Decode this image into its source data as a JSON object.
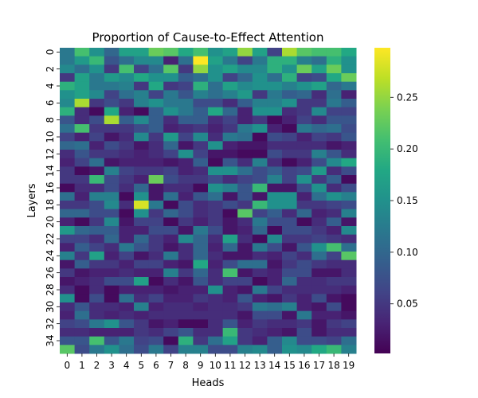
{
  "chart_data": {
    "type": "heatmap",
    "title": "Proportion of Cause-to-Effect Attention",
    "xlabel": "Heads",
    "ylabel": "Layers",
    "x_ticks": [
      "0",
      "1",
      "2",
      "3",
      "4",
      "5",
      "6",
      "7",
      "8",
      "9",
      "10",
      "11",
      "12",
      "13",
      "14",
      "15",
      "16",
      "17",
      "18",
      "19"
    ],
    "y_ticks": [
      "0",
      "2",
      "4",
      "6",
      "8",
      "10",
      "12",
      "14",
      "16",
      "18",
      "20",
      "22",
      "24",
      "26",
      "28",
      "30",
      "32",
      "34"
    ],
    "colormap": "viridis",
    "color_range": [
      0.002,
      0.298
    ],
    "colorbar_ticks": [
      "0.05",
      "0.10",
      "0.15",
      "0.20",
      "0.25"
    ],
    "colorbar_tick_values": [
      0.05,
      0.1,
      0.15,
      0.2,
      0.25
    ],
    "rows": 36,
    "cols": 20,
    "values": [
      [
        0.12,
        0.21,
        0.15,
        0.1,
        0.17,
        0.17,
        0.23,
        0.22,
        0.18,
        0.21,
        0.15,
        0.17,
        0.25,
        0.17,
        0.06,
        0.26,
        0.22,
        0.21,
        0.21,
        0.18
      ],
      [
        0.12,
        0.16,
        0.2,
        0.08,
        0.11,
        0.14,
        0.14,
        0.03,
        0.11,
        0.3,
        0.17,
        0.12,
        0.06,
        0.12,
        0.19,
        0.19,
        0.13,
        0.11,
        0.19,
        0.15
      ],
      [
        0.14,
        0.11,
        0.15,
        0.05,
        0.21,
        0.06,
        0.11,
        0.22,
        0.05,
        0.25,
        0.15,
        0.17,
        0.14,
        0.14,
        0.19,
        0.15,
        0.23,
        0.17,
        0.23,
        0.15
      ],
      [
        0.05,
        0.17,
        0.12,
        0.16,
        0.14,
        0.18,
        0.15,
        0.15,
        0.09,
        0.11,
        0.15,
        0.06,
        0.1,
        0.15,
        0.11,
        0.19,
        0.06,
        0.07,
        0.18,
        0.23
      ],
      [
        0.19,
        0.17,
        0.12,
        0.12,
        0.13,
        0.05,
        0.18,
        0.05,
        0.06,
        0.19,
        0.11,
        0.17,
        0.14,
        0.15,
        0.15,
        0.13,
        0.15,
        0.17,
        0.1,
        0.12
      ],
      [
        0.15,
        0.17,
        0.14,
        0.06,
        0.11,
        0.13,
        0.06,
        0.12,
        0.08,
        0.13,
        0.11,
        0.13,
        0.16,
        0.05,
        0.12,
        0.09,
        0.1,
        0.04,
        0.11,
        0.03
      ],
      [
        0.14,
        0.26,
        0.05,
        0.07,
        0.05,
        0.13,
        0.15,
        0.12,
        0.12,
        0.07,
        0.07,
        0.04,
        0.09,
        0.13,
        0.13,
        0.15,
        0.05,
        0.05,
        0.12,
        0.09
      ],
      [
        0.19,
        0.04,
        0.01,
        0.18,
        0.03,
        0.01,
        0.09,
        0.15,
        0.12,
        0.09,
        0.18,
        0.1,
        0.03,
        0.15,
        0.15,
        0.04,
        0.05,
        0.14,
        0.06,
        0.06
      ],
      [
        0.08,
        0.04,
        0.07,
        0.26,
        0.09,
        0.14,
        0.09,
        0.04,
        0.09,
        0.09,
        0.04,
        0.06,
        0.03,
        0.05,
        0.01,
        0.03,
        0.06,
        0.04,
        0.08,
        0.08
      ],
      [
        0.11,
        0.21,
        0.05,
        0.05,
        0.05,
        0.07,
        0.09,
        0.03,
        0.04,
        0.05,
        0.03,
        0.05,
        0.12,
        0.15,
        0.03,
        0.01,
        0.12,
        0.1,
        0.11,
        0.07
      ],
      [
        0.06,
        0.03,
        0.06,
        0.02,
        0.04,
        0.14,
        0.05,
        0.16,
        0.06,
        0.14,
        0.04,
        0.12,
        0.11,
        0.01,
        0.07,
        0.06,
        0.03,
        0.06,
        0.05,
        0.08
      ],
      [
        0.1,
        0.11,
        0.03,
        0.07,
        0.05,
        0.02,
        0.04,
        0.1,
        0.02,
        0.05,
        0.15,
        0.03,
        0.02,
        0.02,
        0.04,
        0.04,
        0.04,
        0.04,
        0.02,
        0.03
      ],
      [
        0.04,
        0.08,
        0.05,
        0.05,
        0.04,
        0.03,
        0.04,
        0.06,
        0.15,
        0.06,
        0.02,
        0.02,
        0.01,
        0.01,
        0.07,
        0.05,
        0.05,
        0.13,
        0.08,
        0.04
      ],
      [
        0.03,
        0.06,
        0.11,
        0.02,
        0.03,
        0.03,
        0.03,
        0.02,
        0.03,
        0.09,
        0.01,
        0.08,
        0.04,
        0.13,
        0.04,
        0.01,
        0.03,
        0.07,
        0.14,
        0.18
      ],
      [
        0.05,
        0.01,
        0.02,
        0.13,
        0.06,
        0.05,
        0.05,
        0.06,
        0.03,
        0.04,
        0.15,
        0.15,
        0.11,
        0.07,
        0.09,
        0.06,
        0.07,
        0.16,
        0.04,
        0.07
      ],
      [
        0.05,
        0.05,
        0.2,
        0.07,
        0.05,
        0.03,
        0.23,
        0.07,
        0.05,
        0.05,
        0.07,
        0.04,
        0.06,
        0.07,
        0.13,
        0.06,
        0.15,
        0.05,
        0.09,
        0.01
      ],
      [
        0.01,
        0.04,
        0.04,
        0.07,
        0.04,
        0.1,
        0.02,
        0.04,
        0.04,
        0.01,
        0.15,
        0.13,
        0.08,
        0.2,
        0.02,
        0.02,
        0.07,
        0.15,
        0.04,
        0.07
      ],
      [
        0.11,
        0.03,
        0.13,
        0.13,
        0.01,
        0.15,
        0.02,
        0.11,
        0.03,
        0.08,
        0.11,
        0.02,
        0.08,
        0.02,
        0.15,
        0.15,
        0.03,
        0.11,
        0.15,
        0.13
      ],
      [
        0.05,
        0.05,
        0.07,
        0.14,
        0.04,
        0.28,
        0.12,
        0.01,
        0.07,
        0.04,
        0.05,
        0.07,
        0.05,
        0.2,
        0.15,
        0.15,
        0.05,
        0.05,
        0.06,
        0.07
      ],
      [
        0.1,
        0.1,
        0.07,
        0.07,
        0.01,
        0.15,
        0.05,
        0.1,
        0.07,
        0.04,
        0.05,
        0.01,
        0.22,
        0.06,
        0.09,
        0.04,
        0.1,
        0.03,
        0.04,
        0.13
      ],
      [
        0.03,
        0.01,
        0.05,
        0.14,
        0.02,
        0.06,
        0.06,
        0.01,
        0.05,
        0.03,
        0.05,
        0.02,
        0.04,
        0.12,
        0.07,
        0.07,
        0.01,
        0.04,
        0.09,
        0.02
      ],
      [
        0.16,
        0.1,
        0.09,
        0.09,
        0.03,
        0.03,
        0.07,
        0.07,
        0.02,
        0.12,
        0.07,
        0.02,
        0.03,
        0.1,
        0.01,
        0.07,
        0.07,
        0.05,
        0.03,
        0.14
      ],
      [
        0.06,
        0.06,
        0.04,
        0.1,
        0.03,
        0.1,
        0.05,
        0.03,
        0.14,
        0.1,
        0.04,
        0.17,
        0.04,
        0.01,
        0.14,
        0.05,
        0.05,
        0.06,
        0.05,
        0.04
      ],
      [
        0.03,
        0.09,
        0.06,
        0.04,
        0.12,
        0.08,
        0.05,
        0.02,
        0.04,
        0.1,
        0.03,
        0.1,
        0.02,
        0.12,
        0.07,
        0.02,
        0.08,
        0.15,
        0.21,
        0.11
      ],
      [
        0.13,
        0.05,
        0.17,
        0.03,
        0.06,
        0.02,
        0.04,
        0.12,
        0.04,
        0.1,
        0.04,
        0.02,
        0.02,
        0.04,
        0.03,
        0.06,
        0.04,
        0.11,
        0.06,
        0.22
      ],
      [
        0.02,
        0.09,
        0.05,
        0.05,
        0.03,
        0.06,
        0.06,
        0.03,
        0.02,
        0.18,
        0.03,
        0.07,
        0.11,
        0.11,
        0.02,
        0.05,
        0.07,
        0.05,
        0.04,
        0.04
      ],
      [
        0.05,
        0.02,
        0.03,
        0.03,
        0.04,
        0.03,
        0.03,
        0.13,
        0.05,
        0.1,
        0.04,
        0.21,
        0.02,
        0.04,
        0.03,
        0.07,
        0.07,
        0.02,
        0.02,
        0.04
      ],
      [
        0.02,
        0.03,
        0.04,
        0.07,
        0.07,
        0.17,
        0.01,
        0.04,
        0.02,
        0.08,
        0.04,
        0.06,
        0.06,
        0.01,
        0.03,
        0.1,
        0.04,
        0.04,
        0.05,
        0.05
      ],
      [
        0.04,
        0.01,
        0.04,
        0.01,
        0.03,
        0.03,
        0.03,
        0.02,
        0.03,
        0.03,
        0.15,
        0.03,
        0.02,
        0.12,
        0.06,
        0.04,
        0.04,
        0.04,
        0.04,
        0.03
      ],
      [
        0.15,
        0.01,
        0.07,
        0.01,
        0.11,
        0.04,
        0.06,
        0.03,
        0.03,
        0.05,
        0.04,
        0.03,
        0.08,
        0.03,
        0.02,
        0.05,
        0.03,
        0.07,
        0.02,
        0.01
      ],
      [
        0.04,
        0.08,
        0.04,
        0.04,
        0.03,
        0.13,
        0.03,
        0.04,
        0.04,
        0.03,
        0.04,
        0.04,
        0.05,
        0.12,
        0.11,
        0.13,
        0.03,
        0.02,
        0.07,
        0.01
      ],
      [
        0.03,
        0.11,
        0.04,
        0.03,
        0.04,
        0.03,
        0.04,
        0.04,
        0.04,
        0.04,
        0.04,
        0.04,
        0.02,
        0.07,
        0.07,
        0.02,
        0.12,
        0.03,
        0.03,
        0.02
      ],
      [
        0.06,
        0.07,
        0.12,
        0.15,
        0.08,
        0.05,
        0.02,
        0.03,
        0.01,
        0.01,
        0.04,
        0.08,
        0.03,
        0.05,
        0.04,
        0.04,
        0.05,
        0.02,
        0.05,
        0.06
      ],
      [
        0.04,
        0.04,
        0.03,
        0.03,
        0.03,
        0.05,
        0.04,
        0.06,
        0.08,
        0.04,
        0.04,
        0.2,
        0.05,
        0.04,
        0.03,
        0.02,
        0.07,
        0.02,
        0.04,
        0.04
      ],
      [
        0.08,
        0.08,
        0.21,
        0.08,
        0.12,
        0.06,
        0.07,
        0.01,
        0.19,
        0.05,
        0.11,
        0.17,
        0.05,
        0.03,
        0.09,
        0.14,
        0.07,
        0.07,
        0.06,
        0.11
      ],
      [
        0.22,
        0.07,
        0.12,
        0.15,
        0.11,
        0.07,
        0.12,
        0.06,
        0.13,
        0.13,
        0.07,
        0.07,
        0.13,
        0.14,
        0.09,
        0.15,
        0.14,
        0.18,
        0.2,
        0.13
      ]
    ]
  }
}
